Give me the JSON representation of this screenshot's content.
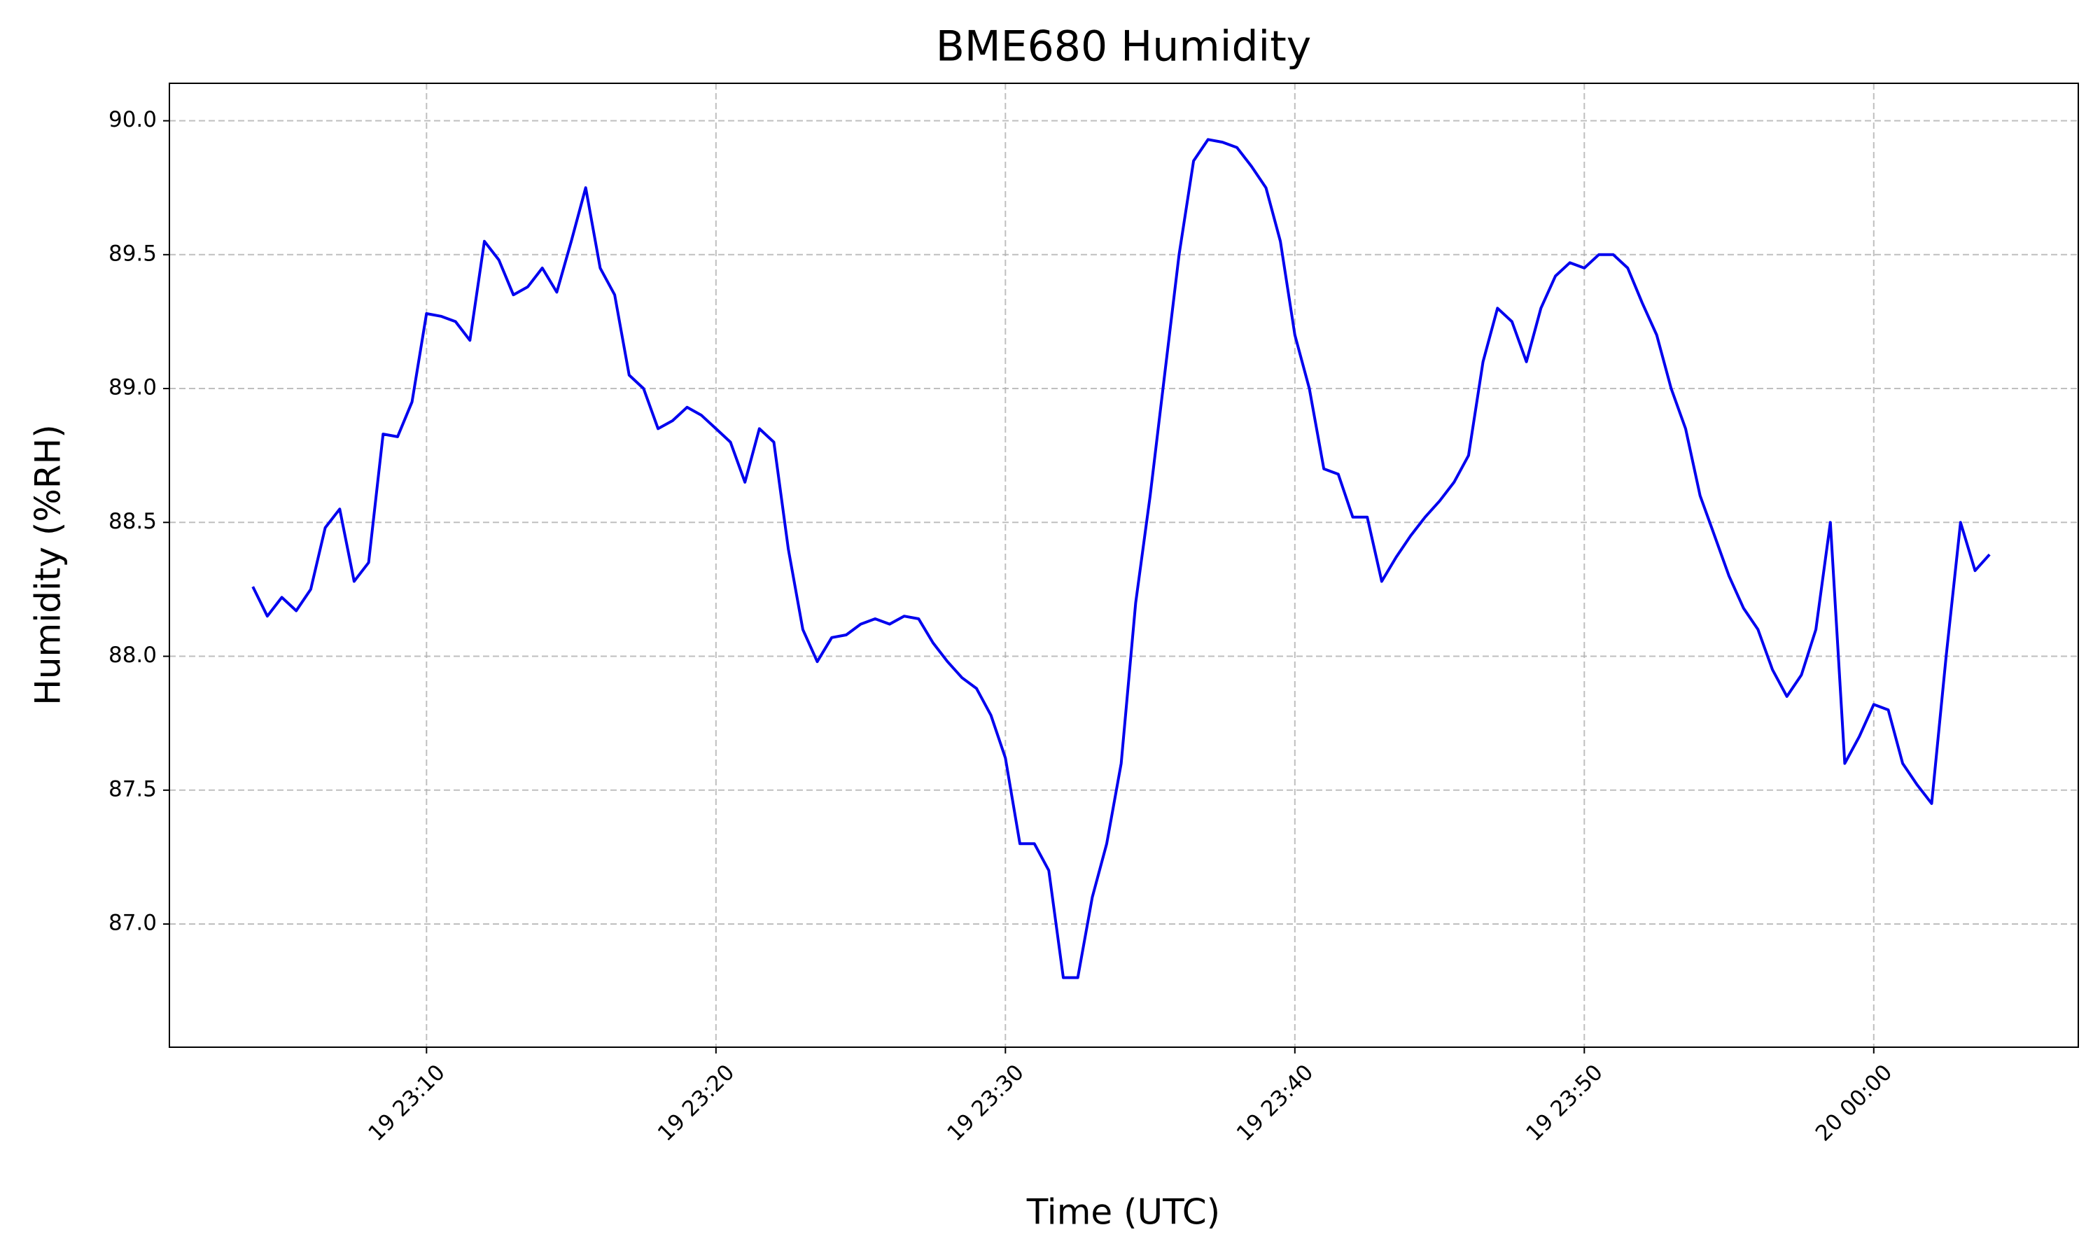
{
  "chart_data": {
    "type": "line",
    "title": "BME680 Humidity",
    "x_label": "Time (UTC)",
    "y_label": "Humidity (%RH)",
    "color": "#0000ee",
    "grid": true,
    "xlim": [
      "19 23:01:07",
      "20 00:07:04"
    ],
    "xticks": [
      "19 23:10",
      "19 23:20",
      "19 23:30",
      "19 23:40",
      "19 23:50",
      "20 00:00"
    ],
    "ylim": [
      86.54,
      90.14
    ],
    "yticks": [
      {
        "value": 87,
        "label": "87.0"
      },
      87.5,
      {
        "value": 88,
        "label": "88.0"
      },
      88.5,
      {
        "value": 89,
        "label": "89.0"
      },
      89.5,
      {
        "value": 90,
        "label": "90.0"
      }
    ],
    "x": [
      "19 23:04:00",
      "19 23:04:30",
      "19 23:05:00",
      "19 23:05:30",
      "19 23:06:00",
      "19 23:06:30",
      "19 23:07:00",
      "19 23:07:30",
      "19 23:08:00",
      "19 23:08:30",
      "19 23:09:00",
      "19 23:09:30",
      "19 23:10:00",
      "19 23:10:30",
      "19 23:11:00",
      "19 23:11:30",
      "19 23:12:00",
      "19 23:12:30",
      "19 23:13:00",
      "19 23:13:30",
      "19 23:14:00",
      "19 23:14:30",
      "19 23:15:00",
      "19 23:15:30",
      "19 23:16:00",
      "19 23:16:30",
      "19 23:17:00",
      "19 23:17:30",
      "19 23:18:00",
      "19 23:18:30",
      "19 23:19:00",
      "19 23:19:30",
      "19 23:20:00",
      "19 23:20:30",
      "19 23:21:00",
      "19 23:21:30",
      "19 23:22:00",
      "19 23:22:30",
      "19 23:23:00",
      "19 23:23:30",
      "19 23:24:00",
      "19 23:24:30",
      "19 23:25:00",
      "19 23:25:30",
      "19 23:26:00",
      "19 23:26:30",
      "19 23:27:00",
      "19 23:27:30",
      "19 23:28:00",
      "19 23:28:30",
      "19 23:29:00",
      "19 23:29:30",
      "19 23:30:00",
      "19 23:30:30",
      "19 23:31:00",
      "19 23:31:30",
      "19 23:32:00",
      "19 23:32:30",
      "19 23:33:00",
      "19 23:33:30",
      "19 23:34:00",
      "19 23:34:30",
      "19 23:35:00",
      "19 23:35:30",
      "19 23:36:00",
      "19 23:36:30",
      "19 23:37:00",
      "19 23:37:30",
      "19 23:38:00",
      "19 23:38:30",
      "19 23:39:00",
      "19 23:39:30",
      "19 23:40:00",
      "19 23:40:30",
      "19 23:41:00",
      "19 23:41:30",
      "19 23:42:00",
      "19 23:42:30",
      "19 23:43:00",
      "19 23:43:30",
      "19 23:44:00",
      "19 23:44:30",
      "19 23:45:00",
      "19 23:45:30",
      "19 23:46:00",
      "19 23:46:30",
      "19 23:47:00",
      "19 23:47:30",
      "19 23:48:00",
      "19 23:48:30",
      "19 23:49:00",
      "19 23:49:30",
      "19 23:50:00",
      "19 23:50:30",
      "19 23:51:00",
      "19 23:51:30",
      "19 23:52:00",
      "19 23:52:30",
      "19 23:53:00",
      "19 23:53:30",
      "19 23:54:00",
      "19 23:54:30",
      "19 23:55:00",
      "19 23:55:30",
      "19 23:56:00",
      "19 23:56:30",
      "19 23:57:00",
      "19 23:57:30",
      "19 23:58:00",
      "19 23:58:30",
      "19 23:59:00",
      "19 23:59:30",
      "20 00:00:00",
      "20 00:00:30",
      "20 00:01:00",
      "20 00:01:30",
      "20 00:02:00",
      "20 00:02:30",
      "20 00:03:00",
      "20 00:03:30",
      "20 00:04:00"
    ],
    "values": [
      88.26,
      88.15,
      88.22,
      88.17,
      88.25,
      88.48,
      88.55,
      88.28,
      88.35,
      88.83,
      88.82,
      88.95,
      89.28,
      89.27,
      89.25,
      89.18,
      89.55,
      89.48,
      89.35,
      89.38,
      89.45,
      89.36,
      89.55,
      89.75,
      89.45,
      89.35,
      89.05,
      89.0,
      88.85,
      88.88,
      88.93,
      88.9,
      88.85,
      88.8,
      88.65,
      88.85,
      88.8,
      88.4,
      88.1,
      87.98,
      88.07,
      88.08,
      88.12,
      88.14,
      88.12,
      88.15,
      88.14,
      88.05,
      87.98,
      87.92,
      87.88,
      87.78,
      87.62,
      87.3,
      87.3,
      87.2,
      86.8,
      86.8,
      87.1,
      87.3,
      87.6,
      88.2,
      88.6,
      89.05,
      89.5,
      89.85,
      89.93,
      89.92,
      89.9,
      89.83,
      89.75,
      89.55,
      89.2,
      89.0,
      88.7,
      88.68,
      88.52,
      88.52,
      88.28,
      88.37,
      88.45,
      88.52,
      88.58,
      88.65,
      88.75,
      89.1,
      89.3,
      89.25,
      89.1,
      89.3,
      89.42,
      89.47,
      89.45,
      89.5,
      89.5,
      89.45,
      89.32,
      89.2,
      89.0,
      88.85,
      88.6,
      88.45,
      88.3,
      88.18,
      88.1,
      87.95,
      87.85,
      87.93,
      88.1,
      88.5,
      87.6,
      87.7,
      87.82,
      87.8,
      87.6,
      87.52,
      87.45,
      88.0,
      88.5,
      88.32,
      88.38
    ]
  }
}
